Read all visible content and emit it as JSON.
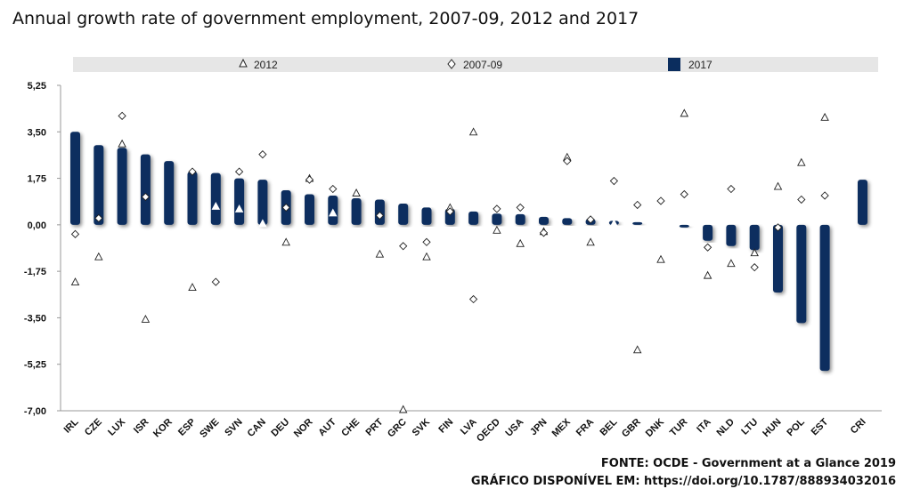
{
  "chart_data": {
    "type": "bar",
    "title": "Annual growth rate of government employment, 2007-09, 2012 and 2017",
    "xlabel": "",
    "ylabel": "",
    "ylim": [
      -7.0,
      5.25
    ],
    "yticks": [
      "5,25",
      "3,50",
      "1,75",
      "0,00",
      "-1,75",
      "-3,50",
      "-5,25",
      "-7,00"
    ],
    "ytick_values": [
      5.25,
      3.5,
      1.75,
      0,
      -1.75,
      -3.5,
      -5.25,
      -7.0
    ],
    "grid": false,
    "legend_position": "top",
    "legend": {
      "s2012": "2012",
      "s2007": "2007-09",
      "s2017": "2017"
    },
    "categories": [
      "IRL",
      "CZE",
      "LUX",
      "ISR",
      "KOR",
      "ESP",
      "SWE",
      "SVN",
      "CAN",
      "DEU",
      "NOR",
      "AUT",
      "CHE",
      "PRT",
      "GRC",
      "SVK",
      "FIN",
      "LVA",
      "OECD",
      "USA",
      "JPN",
      "MEX",
      "FRA",
      "BEL",
      "GBR",
      "DNK",
      "TUR",
      "ITA",
      "NLD",
      "LTU",
      "HUN",
      "POL",
      "EST",
      "CRI"
    ],
    "series": [
      {
        "name": "2017",
        "marker": "bar",
        "color": "#0b2d5e",
        "values": [
          3.5,
          3.0,
          2.9,
          2.65,
          2.4,
          2.0,
          1.95,
          1.75,
          1.7,
          1.3,
          1.15,
          1.1,
          1.0,
          0.95,
          0.8,
          0.65,
          0.6,
          0.5,
          0.42,
          0.4,
          0.3,
          0.25,
          0.22,
          0.15,
          0.1,
          null,
          -0.1,
          -0.6,
          -0.8,
          -0.95,
          -2.55,
          -3.7,
          -5.5,
          1.7
        ]
      },
      {
        "name": "2012",
        "marker": "triangle",
        "values": [
          -2.15,
          -1.2,
          3.05,
          -3.55,
          null,
          -2.35,
          0.7,
          0.6,
          0.05,
          -0.65,
          1.75,
          0.45,
          1.2,
          -1.1,
          -6.95,
          -1.2,
          0.65,
          3.5,
          -0.2,
          -0.7,
          -0.25,
          2.55,
          -0.65,
          0.05,
          -4.7,
          -1.3,
          4.2,
          -1.9,
          -1.45,
          -1.05,
          1.45,
          2.35,
          4.05,
          null
        ]
      },
      {
        "name": "2007-09",
        "marker": "diamond",
        "values": [
          -0.35,
          0.25,
          4.1,
          1.05,
          null,
          2.0,
          -2.15,
          2.0,
          2.65,
          0.65,
          1.7,
          1.35,
          null,
          0.35,
          -0.8,
          -0.65,
          0.5,
          -2.8,
          0.6,
          0.65,
          -0.3,
          2.4,
          0.2,
          1.65,
          0.75,
          0.9,
          1.15,
          -0.85,
          1.35,
          -1.6,
          -0.1,
          0.95,
          1.1,
          null
        ]
      }
    ]
  },
  "source": {
    "line1": "FONTE: OCDE - Government at a Glance 2019",
    "line2": "GRÁFICO DISPONÍVEL EM: https://doi.org/10.1787/888934032016"
  }
}
